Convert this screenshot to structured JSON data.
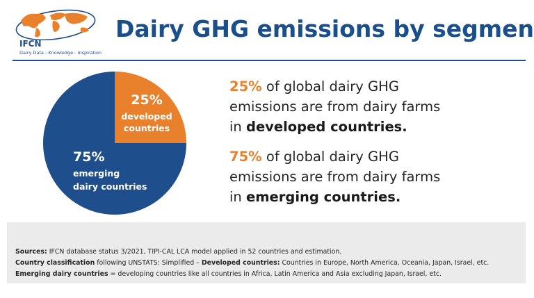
{
  "header": {
    "logo_name": "IFCN",
    "logo_tagline": "Dairy Data - Knowledge - Inspiration",
    "title": "Dairy GHG emissions by segments"
  },
  "colors": {
    "developed": "#e9812c",
    "emerging": "#1f4e8c",
    "title": "#1a4f8b"
  },
  "chart_data": {
    "type": "pie",
    "slices": [
      {
        "value": 25,
        "label_pct": "25%",
        "label_lines": [
          "developed",
          "countries"
        ],
        "color": "#e9812c"
      },
      {
        "value": 75,
        "label_pct": "75%",
        "label_lines": [
          "emerging",
          "dairy countries"
        ],
        "color": "#1f4e8c"
      }
    ]
  },
  "statements": [
    {
      "pct": "25%",
      "line1_rest": " of global dairy GHG",
      "line2": "emissions are from dairy farms",
      "line3_prefix": "in ",
      "line3_bold": "developed countries."
    },
    {
      "pct": "75%",
      "line1_rest": " of global dairy GHG",
      "line2": "emissions are from dairy farms",
      "line3_prefix": "in ",
      "line3_bold": "emerging countries."
    }
  ],
  "footer": {
    "sources_label": "Sources:",
    "sources_text": " IFCN database status 3/2021, TIPI-CAL LCA model applied in 52 countries and estimation.",
    "classification_label": "Country classification",
    "classification_text": " following UNSTATS: Simplified – ",
    "developed_label": "Developed countries:",
    "developed_text": " Countries in Europe, North America, Oceania, Japan, Israel, etc.",
    "emerging_label": "Emerging dairy countries",
    "emerging_text": " = developing countries like all countries in Africa, Latin America and Asia excluding Japan, Israel, etc."
  }
}
